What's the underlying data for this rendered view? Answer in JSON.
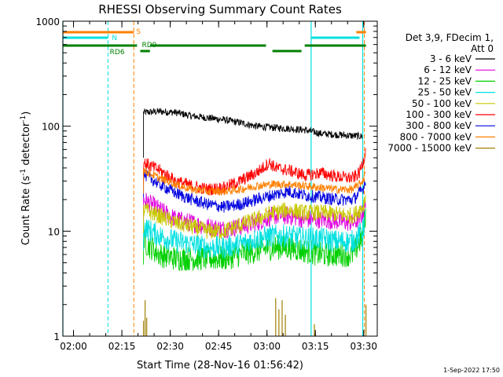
{
  "chart_data": {
    "type": "line",
    "title": "RHESSI Observing Summary Count Rates",
    "xlabel": "Start Time (28-Nov-16 01:56:42)",
    "ylabel_parts": {
      "base": "Count Rate (s",
      "sup1": "-1",
      "mid": " detector",
      "sup2": "-1",
      "end": ")"
    },
    "x_unit": "minutes since 01:56:42",
    "xlim": [
      0,
      97.5
    ],
    "ylim": [
      1,
      1000
    ],
    "yscale": "log",
    "x_ticks": [
      {
        "x": 3.3,
        "label": "02:00"
      },
      {
        "x": 18.3,
        "label": "02:15"
      },
      {
        "x": 33.3,
        "label": "02:30"
      },
      {
        "x": 48.3,
        "label": "02:45"
      },
      {
        "x": 63.3,
        "label": "03:00"
      },
      {
        "x": 78.3,
        "label": "03:15"
      },
      {
        "x": 93.3,
        "label": "03:30"
      }
    ],
    "y_ticks": [
      {
        "y": 1,
        "label": "1"
      },
      {
        "y": 10,
        "label": "10"
      },
      {
        "y": 100,
        "label": "100"
      },
      {
        "y": 1000,
        "label": "1000"
      }
    ],
    "legend": {
      "header": [
        "Det 3,9, FDecim 1,",
        "Att 0"
      ],
      "placement": "right"
    },
    "series": [
      {
        "name": "3 - 6 keV",
        "color": "#000000",
        "points": [
          [
            25,
            135
          ],
          [
            30,
            138
          ],
          [
            35,
            135
          ],
          [
            40,
            125
          ],
          [
            45,
            120
          ],
          [
            50,
            115
          ],
          [
            55,
            108
          ],
          [
            60,
            100
          ],
          [
            65,
            97
          ],
          [
            70,
            95
          ],
          [
            75,
            92
          ],
          [
            80,
            85
          ],
          [
            85,
            83
          ],
          [
            90,
            81
          ],
          [
            93,
            80
          ]
        ]
      },
      {
        "name": "6 - 12 keV",
        "color": "#e000e0",
        "points": [
          [
            25,
            20
          ],
          [
            30,
            16
          ],
          [
            35,
            13
          ],
          [
            40,
            12
          ],
          [
            45,
            11
          ],
          [
            50,
            10.5
          ],
          [
            55,
            11
          ],
          [
            60,
            12
          ],
          [
            65,
            14
          ],
          [
            70,
            14
          ],
          [
            75,
            13
          ],
          [
            80,
            13
          ],
          [
            85,
            12.5
          ],
          [
            90,
            12
          ],
          [
            92,
            13
          ],
          [
            93,
            15
          ],
          [
            94,
            18
          ]
        ]
      },
      {
        "name": "12 - 25 keV",
        "color": "#00d000",
        "points": [
          [
            25,
            8
          ],
          [
            30,
            6
          ],
          [
            35,
            5.5
          ],
          [
            40,
            5.5
          ],
          [
            45,
            5.5
          ],
          [
            50,
            5.5
          ],
          [
            55,
            6
          ],
          [
            60,
            6.5
          ],
          [
            65,
            7
          ],
          [
            70,
            7
          ],
          [
            75,
            6.5
          ],
          [
            80,
            6
          ],
          [
            85,
            6
          ],
          [
            90,
            6
          ],
          [
            93,
            9
          ],
          [
            94,
            16
          ]
        ]
      },
      {
        "name": "25 - 50 keV",
        "color": "#00e0e0",
        "points": [
          [
            25,
            11
          ],
          [
            30,
            9
          ],
          [
            35,
            8
          ],
          [
            40,
            7.5
          ],
          [
            45,
            7
          ],
          [
            50,
            7
          ],
          [
            55,
            7.5
          ],
          [
            60,
            8.5
          ],
          [
            65,
            9
          ],
          [
            70,
            9
          ],
          [
            75,
            8.5
          ],
          [
            80,
            8.5
          ],
          [
            85,
            8
          ],
          [
            90,
            8
          ],
          [
            93,
            10
          ],
          [
            94,
            14
          ]
        ]
      },
      {
        "name": "50 - 100 keV",
        "color": "#c8c800",
        "points": [
          [
            25,
            16
          ],
          [
            30,
            14
          ],
          [
            35,
            12
          ],
          [
            40,
            11
          ],
          [
            45,
            10
          ],
          [
            50,
            10
          ],
          [
            55,
            11.5
          ],
          [
            60,
            13
          ],
          [
            65,
            15
          ],
          [
            70,
            16
          ],
          [
            75,
            15
          ],
          [
            80,
            15
          ],
          [
            85,
            14.5
          ],
          [
            90,
            14
          ],
          [
            93,
            17
          ],
          [
            94,
            22
          ]
        ]
      },
      {
        "name": "100 - 300 keV",
        "color": "#ff0000",
        "points": [
          [
            25,
            45
          ],
          [
            30,
            38
          ],
          [
            35,
            30
          ],
          [
            40,
            27
          ],
          [
            45,
            25
          ],
          [
            50,
            26
          ],
          [
            55,
            30
          ],
          [
            60,
            36
          ],
          [
            62,
            40
          ],
          [
            64,
            45
          ],
          [
            66,
            40
          ],
          [
            70,
            38
          ],
          [
            75,
            34
          ],
          [
            78,
            35
          ],
          [
            80,
            36
          ],
          [
            85,
            33
          ],
          [
            90,
            32
          ],
          [
            92,
            36
          ],
          [
            93,
            45
          ],
          [
            94,
            60
          ]
        ]
      },
      {
        "name": "300 - 800 keV",
        "color": "#0000e0",
        "points": [
          [
            25,
            35
          ],
          [
            30,
            28
          ],
          [
            35,
            23
          ],
          [
            40,
            20
          ],
          [
            45,
            18
          ],
          [
            50,
            17
          ],
          [
            55,
            18
          ],
          [
            60,
            20
          ],
          [
            65,
            22
          ],
          [
            70,
            24
          ],
          [
            75,
            22
          ],
          [
            80,
            21
          ],
          [
            85,
            20
          ],
          [
            90,
            20
          ],
          [
            93,
            25
          ],
          [
            94,
            32
          ]
        ]
      },
      {
        "name": "800 - 7000 keV",
        "color": "#ff8000",
        "points": [
          [
            25,
            38
          ],
          [
            30,
            32
          ],
          [
            35,
            28
          ],
          [
            40,
            25
          ],
          [
            45,
            24
          ],
          [
            50,
            24
          ],
          [
            55,
            25
          ],
          [
            60,
            27
          ],
          [
            65,
            28
          ],
          [
            70,
            28
          ],
          [
            75,
            27
          ],
          [
            80,
            26
          ],
          [
            85,
            25
          ],
          [
            90,
            25
          ],
          [
            93,
            30
          ],
          [
            94,
            40
          ]
        ]
      },
      {
        "name": "7000 - 15000 keV",
        "color": "#a08000",
        "points": [
          [
            25,
            1.4
          ],
          [
            25.5,
            2.2
          ],
          [
            26,
            1.5
          ],
          [
            66,
            2.3
          ],
          [
            67,
            1.8
          ],
          [
            68,
            2.2
          ],
          [
            69,
            1.6
          ],
          [
            78,
            1.3
          ],
          [
            94,
            2.0
          ]
        ]
      }
    ],
    "flag_labels": {
      "s": "S",
      "n": "N",
      "rd6": "RD6",
      "rd9": "RD9"
    },
    "flags": {
      "s": [
        [
          0,
          22
        ],
        [
          91,
          94
        ]
      ],
      "n": [
        [
          0,
          14
        ],
        [
          77,
          92
        ]
      ],
      "rd_main": [
        [
          0,
          23
        ],
        [
          27,
          63
        ],
        [
          75,
          94
        ]
      ],
      "rd_short": [
        [
          24,
          27
        ],
        [
          65,
          74
        ]
      ]
    },
    "vlines": {
      "cyan": [
        0,
        77,
        93
      ],
      "cyan_dashed": [
        14
      ],
      "orange_dashed": [
        22,
        93.5
      ]
    },
    "timestamp": "1-Sep-2022 17:50"
  }
}
